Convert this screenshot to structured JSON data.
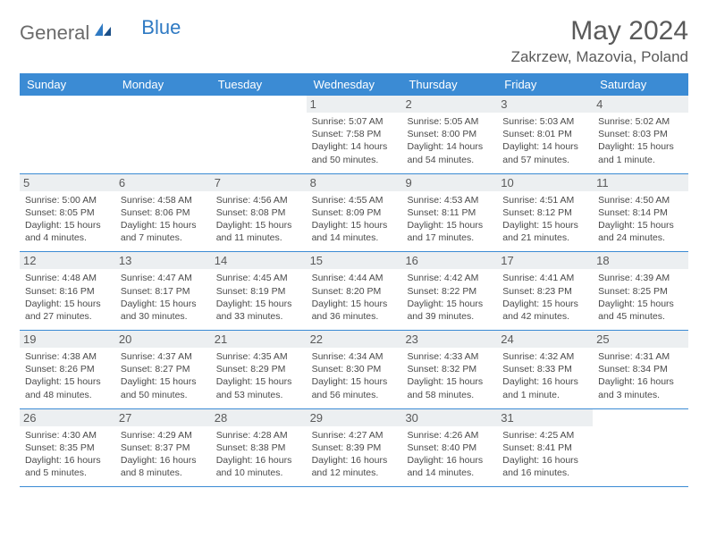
{
  "brand": {
    "text1": "General",
    "text2": "Blue"
  },
  "colors": {
    "header_bg": "#3b8bd4",
    "header_text": "#ffffff",
    "daynum_bg": "#eceff1",
    "border": "#3b8bd4",
    "brand_blue": "#2f7ac3",
    "body_text": "#4a4a4a",
    "title_text": "#5a5a5a",
    "background": "#ffffff"
  },
  "typography": {
    "title_fontsize": 30,
    "location_fontsize": 17,
    "day_header_fontsize": 13,
    "cell_fontsize": 10.5
  },
  "title": "May 2024",
  "location": "Zakrzew, Mazovia, Poland",
  "day_names": [
    "Sunday",
    "Monday",
    "Tuesday",
    "Wednesday",
    "Thursday",
    "Friday",
    "Saturday"
  ],
  "weeks": [
    [
      {
        "day": "",
        "sunrise": "",
        "sunset": "",
        "daylight": ""
      },
      {
        "day": "",
        "sunrise": "",
        "sunset": "",
        "daylight": ""
      },
      {
        "day": "",
        "sunrise": "",
        "sunset": "",
        "daylight": ""
      },
      {
        "day": "1",
        "sunrise": "Sunrise: 5:07 AM",
        "sunset": "Sunset: 7:58 PM",
        "daylight": "Daylight: 14 hours and 50 minutes."
      },
      {
        "day": "2",
        "sunrise": "Sunrise: 5:05 AM",
        "sunset": "Sunset: 8:00 PM",
        "daylight": "Daylight: 14 hours and 54 minutes."
      },
      {
        "day": "3",
        "sunrise": "Sunrise: 5:03 AM",
        "sunset": "Sunset: 8:01 PM",
        "daylight": "Daylight: 14 hours and 57 minutes."
      },
      {
        "day": "4",
        "sunrise": "Sunrise: 5:02 AM",
        "sunset": "Sunset: 8:03 PM",
        "daylight": "Daylight: 15 hours and 1 minute."
      }
    ],
    [
      {
        "day": "5",
        "sunrise": "Sunrise: 5:00 AM",
        "sunset": "Sunset: 8:05 PM",
        "daylight": "Daylight: 15 hours and 4 minutes."
      },
      {
        "day": "6",
        "sunrise": "Sunrise: 4:58 AM",
        "sunset": "Sunset: 8:06 PM",
        "daylight": "Daylight: 15 hours and 7 minutes."
      },
      {
        "day": "7",
        "sunrise": "Sunrise: 4:56 AM",
        "sunset": "Sunset: 8:08 PM",
        "daylight": "Daylight: 15 hours and 11 minutes."
      },
      {
        "day": "8",
        "sunrise": "Sunrise: 4:55 AM",
        "sunset": "Sunset: 8:09 PM",
        "daylight": "Daylight: 15 hours and 14 minutes."
      },
      {
        "day": "9",
        "sunrise": "Sunrise: 4:53 AM",
        "sunset": "Sunset: 8:11 PM",
        "daylight": "Daylight: 15 hours and 17 minutes."
      },
      {
        "day": "10",
        "sunrise": "Sunrise: 4:51 AM",
        "sunset": "Sunset: 8:12 PM",
        "daylight": "Daylight: 15 hours and 21 minutes."
      },
      {
        "day": "11",
        "sunrise": "Sunrise: 4:50 AM",
        "sunset": "Sunset: 8:14 PM",
        "daylight": "Daylight: 15 hours and 24 minutes."
      }
    ],
    [
      {
        "day": "12",
        "sunrise": "Sunrise: 4:48 AM",
        "sunset": "Sunset: 8:16 PM",
        "daylight": "Daylight: 15 hours and 27 minutes."
      },
      {
        "day": "13",
        "sunrise": "Sunrise: 4:47 AM",
        "sunset": "Sunset: 8:17 PM",
        "daylight": "Daylight: 15 hours and 30 minutes."
      },
      {
        "day": "14",
        "sunrise": "Sunrise: 4:45 AM",
        "sunset": "Sunset: 8:19 PM",
        "daylight": "Daylight: 15 hours and 33 minutes."
      },
      {
        "day": "15",
        "sunrise": "Sunrise: 4:44 AM",
        "sunset": "Sunset: 8:20 PM",
        "daylight": "Daylight: 15 hours and 36 minutes."
      },
      {
        "day": "16",
        "sunrise": "Sunrise: 4:42 AM",
        "sunset": "Sunset: 8:22 PM",
        "daylight": "Daylight: 15 hours and 39 minutes."
      },
      {
        "day": "17",
        "sunrise": "Sunrise: 4:41 AM",
        "sunset": "Sunset: 8:23 PM",
        "daylight": "Daylight: 15 hours and 42 minutes."
      },
      {
        "day": "18",
        "sunrise": "Sunrise: 4:39 AM",
        "sunset": "Sunset: 8:25 PM",
        "daylight": "Daylight: 15 hours and 45 minutes."
      }
    ],
    [
      {
        "day": "19",
        "sunrise": "Sunrise: 4:38 AM",
        "sunset": "Sunset: 8:26 PM",
        "daylight": "Daylight: 15 hours and 48 minutes."
      },
      {
        "day": "20",
        "sunrise": "Sunrise: 4:37 AM",
        "sunset": "Sunset: 8:27 PM",
        "daylight": "Daylight: 15 hours and 50 minutes."
      },
      {
        "day": "21",
        "sunrise": "Sunrise: 4:35 AM",
        "sunset": "Sunset: 8:29 PM",
        "daylight": "Daylight: 15 hours and 53 minutes."
      },
      {
        "day": "22",
        "sunrise": "Sunrise: 4:34 AM",
        "sunset": "Sunset: 8:30 PM",
        "daylight": "Daylight: 15 hours and 56 minutes."
      },
      {
        "day": "23",
        "sunrise": "Sunrise: 4:33 AM",
        "sunset": "Sunset: 8:32 PM",
        "daylight": "Daylight: 15 hours and 58 minutes."
      },
      {
        "day": "24",
        "sunrise": "Sunrise: 4:32 AM",
        "sunset": "Sunset: 8:33 PM",
        "daylight": "Daylight: 16 hours and 1 minute."
      },
      {
        "day": "25",
        "sunrise": "Sunrise: 4:31 AM",
        "sunset": "Sunset: 8:34 PM",
        "daylight": "Daylight: 16 hours and 3 minutes."
      }
    ],
    [
      {
        "day": "26",
        "sunrise": "Sunrise: 4:30 AM",
        "sunset": "Sunset: 8:35 PM",
        "daylight": "Daylight: 16 hours and 5 minutes."
      },
      {
        "day": "27",
        "sunrise": "Sunrise: 4:29 AM",
        "sunset": "Sunset: 8:37 PM",
        "daylight": "Daylight: 16 hours and 8 minutes."
      },
      {
        "day": "28",
        "sunrise": "Sunrise: 4:28 AM",
        "sunset": "Sunset: 8:38 PM",
        "daylight": "Daylight: 16 hours and 10 minutes."
      },
      {
        "day": "29",
        "sunrise": "Sunrise: 4:27 AM",
        "sunset": "Sunset: 8:39 PM",
        "daylight": "Daylight: 16 hours and 12 minutes."
      },
      {
        "day": "30",
        "sunrise": "Sunrise: 4:26 AM",
        "sunset": "Sunset: 8:40 PM",
        "daylight": "Daylight: 16 hours and 14 minutes."
      },
      {
        "day": "31",
        "sunrise": "Sunrise: 4:25 AM",
        "sunset": "Sunset: 8:41 PM",
        "daylight": "Daylight: 16 hours and 16 minutes."
      },
      {
        "day": "",
        "sunrise": "",
        "sunset": "",
        "daylight": ""
      }
    ]
  ]
}
